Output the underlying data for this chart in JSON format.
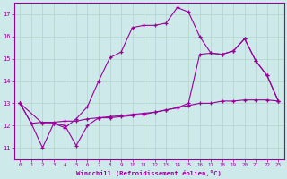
{
  "background_color": "#cde9e9",
  "grid_color": "#b0d4c8",
  "line_color": "#990099",
  "marker": "+",
  "xlabel": "Windchill (Refroidissement éolien,°C)",
  "xlim": [
    -0.5,
    23.5
  ],
  "ylim": [
    10.5,
    17.5
  ],
  "xticks": [
    0,
    1,
    2,
    3,
    4,
    5,
    6,
    7,
    8,
    9,
    10,
    11,
    12,
    13,
    14,
    15,
    16,
    17,
    18,
    19,
    20,
    21,
    22,
    23
  ],
  "yticks": [
    11,
    12,
    13,
    14,
    15,
    16,
    17
  ],
  "line1_x": [
    0,
    1,
    2,
    3,
    4,
    5,
    6,
    7,
    8,
    9,
    10,
    11,
    12,
    13,
    14,
    15,
    16,
    17,
    18,
    19,
    20,
    21,
    22,
    23
  ],
  "line1_y": [
    13.0,
    12.1,
    12.15,
    12.15,
    12.2,
    12.2,
    12.3,
    12.35,
    12.4,
    12.45,
    12.5,
    12.55,
    12.6,
    12.7,
    12.8,
    12.9,
    13.0,
    13.0,
    13.1,
    13.1,
    13.15,
    13.15,
    13.15,
    13.1
  ],
  "line2_x": [
    0,
    1,
    2,
    3,
    4,
    5,
    6,
    7,
    8,
    9,
    10,
    11,
    12,
    13,
    14,
    15,
    16,
    17,
    18,
    19,
    20,
    21,
    22,
    23
  ],
  "line2_y": [
    13.0,
    12.1,
    11.0,
    12.1,
    11.9,
    12.3,
    12.85,
    14.0,
    15.05,
    15.3,
    16.4,
    16.5,
    16.5,
    16.6,
    17.3,
    17.1,
    16.0,
    15.25,
    15.2,
    15.35,
    15.9,
    14.9,
    14.25,
    13.1
  ],
  "line3_x": [
    0,
    2,
    3,
    4,
    5,
    6,
    7,
    8,
    9,
    10,
    11,
    12,
    13,
    14,
    15,
    16,
    17,
    18,
    19,
    20,
    21,
    22,
    23
  ],
  "line3_y": [
    13.0,
    12.1,
    12.1,
    12.0,
    11.1,
    12.0,
    12.35,
    12.35,
    12.4,
    12.45,
    12.5,
    12.6,
    12.7,
    12.8,
    13.0,
    15.2,
    15.25,
    15.2,
    15.35,
    15.9,
    14.9,
    14.25,
    13.1
  ]
}
